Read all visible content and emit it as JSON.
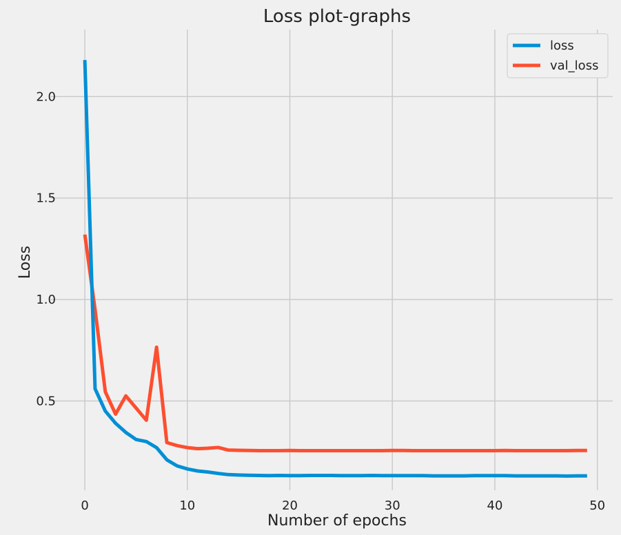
{
  "chart_data": {
    "type": "line",
    "title": "Loss plot-graphs",
    "xlabel": "Number of epochs",
    "ylabel": "Loss",
    "xlim": [
      -3.3,
      51.5
    ],
    "ylim": [
      0.06,
      2.33
    ],
    "xticks": [
      0,
      10,
      20,
      30,
      40,
      50
    ],
    "xtick_labels": [
      "0",
      "10",
      "20",
      "30",
      "40",
      "50"
    ],
    "yticks": [
      0.5,
      1.0,
      1.5,
      2.0
    ],
    "ytick_labels": [
      "0.5",
      "1.0",
      "1.5",
      "2.0"
    ],
    "grid": true,
    "legend_position": "top-right",
    "x": [
      0,
      1,
      2,
      3,
      4,
      5,
      6,
      7,
      8,
      9,
      10,
      11,
      12,
      13,
      14,
      15,
      16,
      17,
      18,
      19,
      20,
      21,
      22,
      23,
      24,
      25,
      26,
      27,
      28,
      29,
      30,
      31,
      32,
      33,
      34,
      35,
      36,
      37,
      38,
      39,
      40,
      41,
      42,
      43,
      44,
      45,
      46,
      47,
      48,
      49
    ],
    "series": [
      {
        "name": "loss",
        "color": "#008fd5",
        "values": [
          2.18,
          0.56,
          0.45,
          0.39,
          0.345,
          0.31,
          0.3,
          0.27,
          0.21,
          0.18,
          0.165,
          0.155,
          0.15,
          0.143,
          0.137,
          0.135,
          0.134,
          0.133,
          0.132,
          0.133,
          0.132,
          0.132,
          0.133,
          0.133,
          0.133,
          0.132,
          0.132,
          0.132,
          0.133,
          0.132,
          0.132,
          0.132,
          0.132,
          0.132,
          0.131,
          0.131,
          0.131,
          0.131,
          0.132,
          0.132,
          0.132,
          0.132,
          0.131,
          0.131,
          0.131,
          0.131,
          0.131,
          0.13,
          0.131,
          0.131
        ]
      },
      {
        "name": "val_loss",
        "color": "#fc4f30",
        "values": [
          1.32,
          0.95,
          0.545,
          0.435,
          0.525,
          0.465,
          0.405,
          0.765,
          0.295,
          0.28,
          0.27,
          0.265,
          0.267,
          0.271,
          0.258,
          0.257,
          0.256,
          0.255,
          0.255,
          0.255,
          0.256,
          0.255,
          0.255,
          0.255,
          0.255,
          0.255,
          0.255,
          0.255,
          0.255,
          0.255,
          0.256,
          0.256,
          0.255,
          0.255,
          0.255,
          0.255,
          0.255,
          0.255,
          0.255,
          0.255,
          0.255,
          0.256,
          0.255,
          0.255,
          0.255,
          0.255,
          0.255,
          0.255,
          0.256,
          0.256
        ]
      }
    ]
  }
}
